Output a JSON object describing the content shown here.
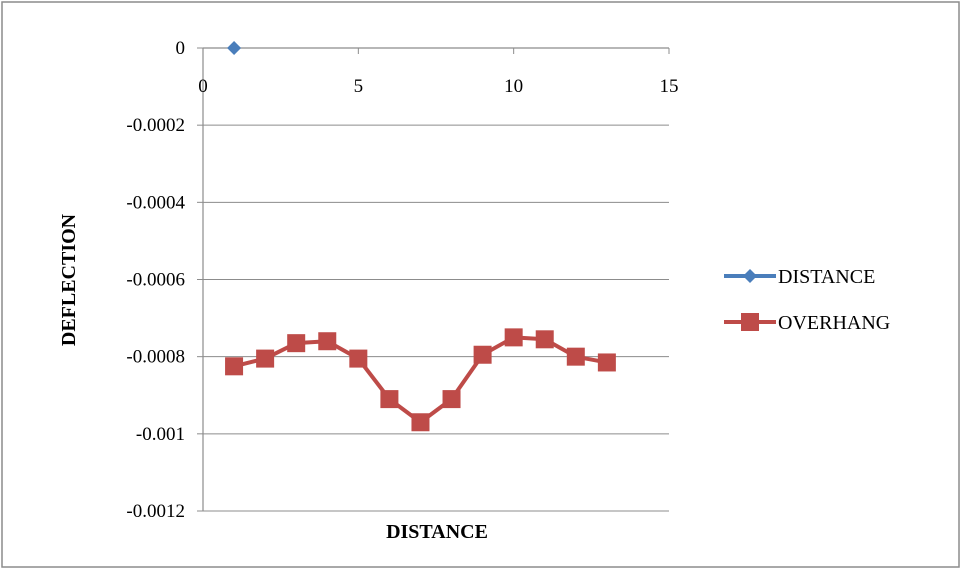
{
  "chart_data": {
    "type": "line",
    "xlabel": "DISTANCE",
    "ylabel": "DEFLECTION",
    "xlim": [
      0,
      15
    ],
    "ylim": [
      -0.0012,
      0
    ],
    "x_ticks": [
      "0",
      "5",
      "10",
      "15"
    ],
    "x_tick_values": [
      0,
      5,
      10,
      15
    ],
    "y_ticks": [
      "0",
      "-0.0002",
      "-0.0004",
      "-0.0006",
      "-0.0008",
      "-0.001",
      "-0.0012"
    ],
    "y_tick_values": [
      0,
      -0.0002,
      -0.0004,
      -0.0006,
      -0.0008,
      -0.001,
      -0.0012
    ],
    "grid": "horizontal",
    "legend_position": "right",
    "series": [
      {
        "name": "DISTANCE",
        "color": "#4a7ebb",
        "marker": "diamond",
        "x": [
          1
        ],
        "y": [
          0
        ]
      },
      {
        "name": "OVERHANG",
        "color": "#be4b48",
        "marker": "square",
        "x": [
          1,
          2,
          3,
          4,
          5,
          6,
          7,
          8,
          9,
          10,
          11,
          12,
          13
        ],
        "y": [
          -0.000825,
          -0.000805,
          -0.000765,
          -0.00076,
          -0.000805,
          -0.00091,
          -0.00097,
          -0.00091,
          -0.000795,
          -0.00075,
          -0.000755,
          -0.0008,
          -0.000815
        ]
      }
    ]
  }
}
